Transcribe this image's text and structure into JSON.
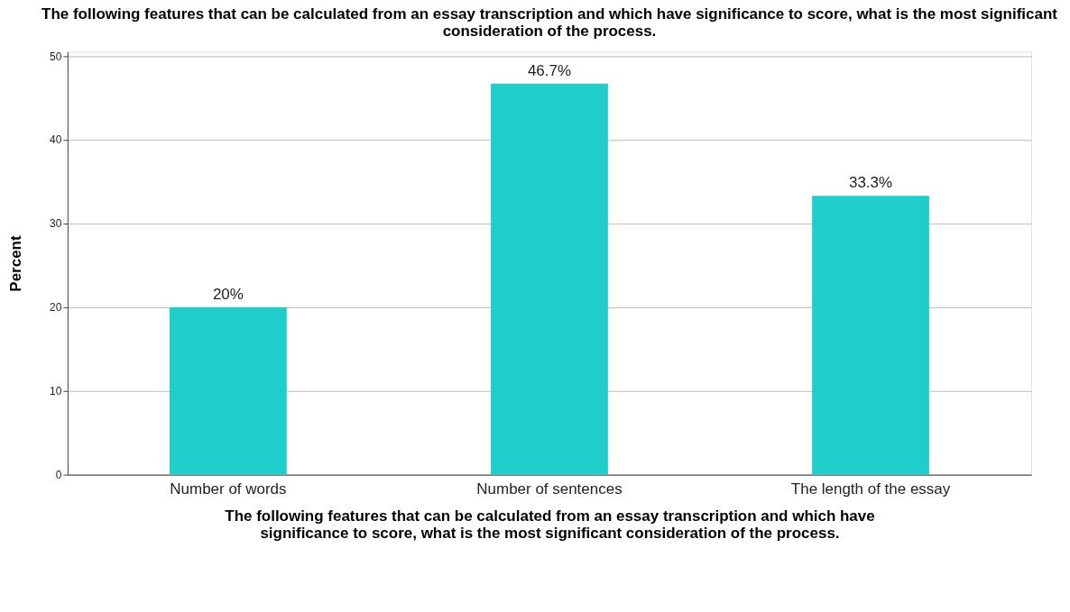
{
  "chart_data": {
    "type": "bar",
    "title": "The following features that can be calculated from an essay transcription and which have significance to score, what is the most significant consideration of the process.",
    "xlabel": "The following features that can be calculated from an essay transcription and which have significance to score, what is the most significant consideration of the process.",
    "ylabel": "Percent",
    "categories": [
      "Number of words",
      "Number of sentences",
      "The length of the essay"
    ],
    "values": [
      20,
      46.7,
      33.3
    ],
    "value_labels": [
      "20%",
      "46.7%",
      "33.3%"
    ],
    "color": "#1fcecb",
    "ylim": [
      0,
      50.5
    ],
    "yticks": [
      0,
      10,
      20,
      30,
      40,
      50
    ],
    "grid": "y"
  }
}
